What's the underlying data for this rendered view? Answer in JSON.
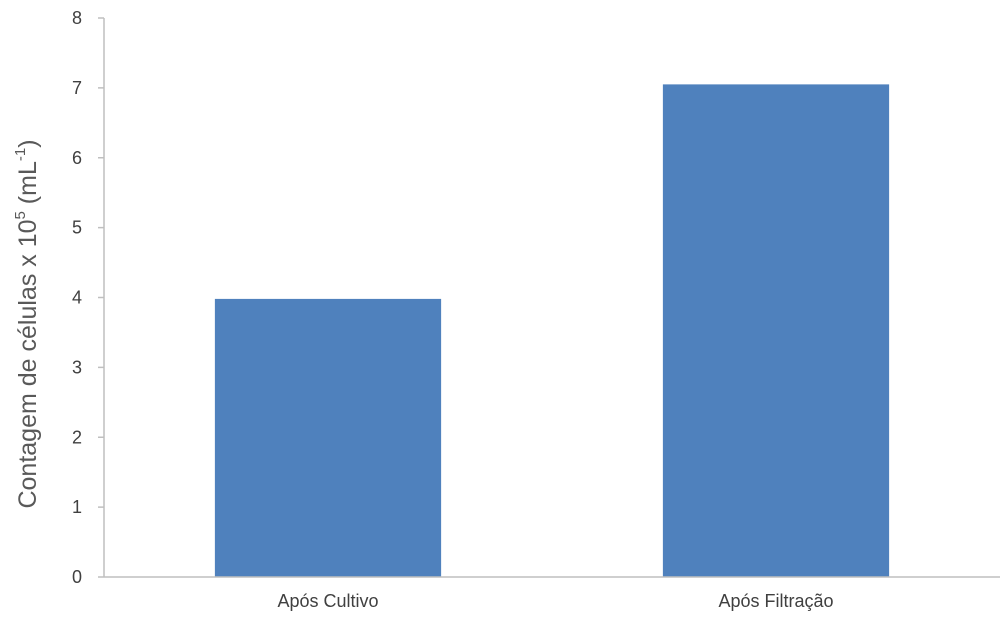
{
  "chart_data": {
    "type": "bar",
    "title": "",
    "xlabel": "",
    "ylabel": {
      "main": "Contagem de células x 10",
      "exp": "5",
      "unit_open": " (mL",
      "unit_exp": "-1",
      "unit_close": ")"
    },
    "categories": [
      "Após Cultivo",
      "Após Filtração"
    ],
    "values": [
      3.98,
      7.05
    ],
    "ylim": [
      0,
      8
    ],
    "yticks": [
      0,
      1,
      2,
      3,
      4,
      5,
      6,
      7,
      8
    ],
    "grid": false,
    "legend": "none",
    "bar_color": "#4f81bd",
    "axis_color": "#bfbfbf"
  }
}
